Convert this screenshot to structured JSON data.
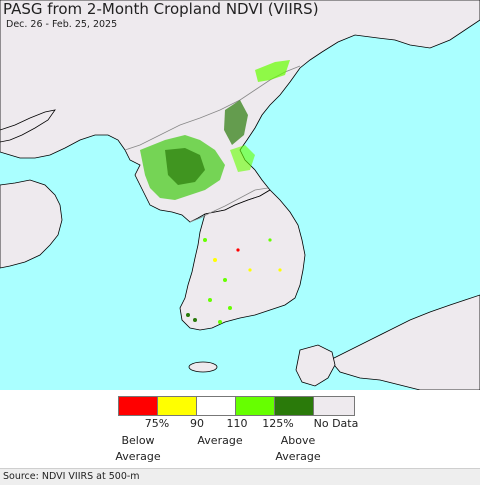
{
  "title": "PASG from 2-Month Cropland NDVI (VIIRS)",
  "subtitle": "Dec. 26 - Feb. 25, 2025",
  "legend": {
    "colors": [
      "#ff0000",
      "#ffff00",
      "#ffffff",
      "#66ff00",
      "#2a7a0a",
      "#eeeaee"
    ],
    "ticks": [
      "75%",
      "90",
      "110",
      "125%",
      "No Data"
    ],
    "below_label_1": "Below",
    "below_label_2": "Average",
    "average_label": "Average",
    "above_label_1": "Above",
    "above_label_2": "Average"
  },
  "source": "Source: NDVI VIIRS at 500-m",
  "map_colors": {
    "ocean": "#aaffff",
    "land": "#eeeaee",
    "border": "#888888",
    "coast": "#000000"
  }
}
